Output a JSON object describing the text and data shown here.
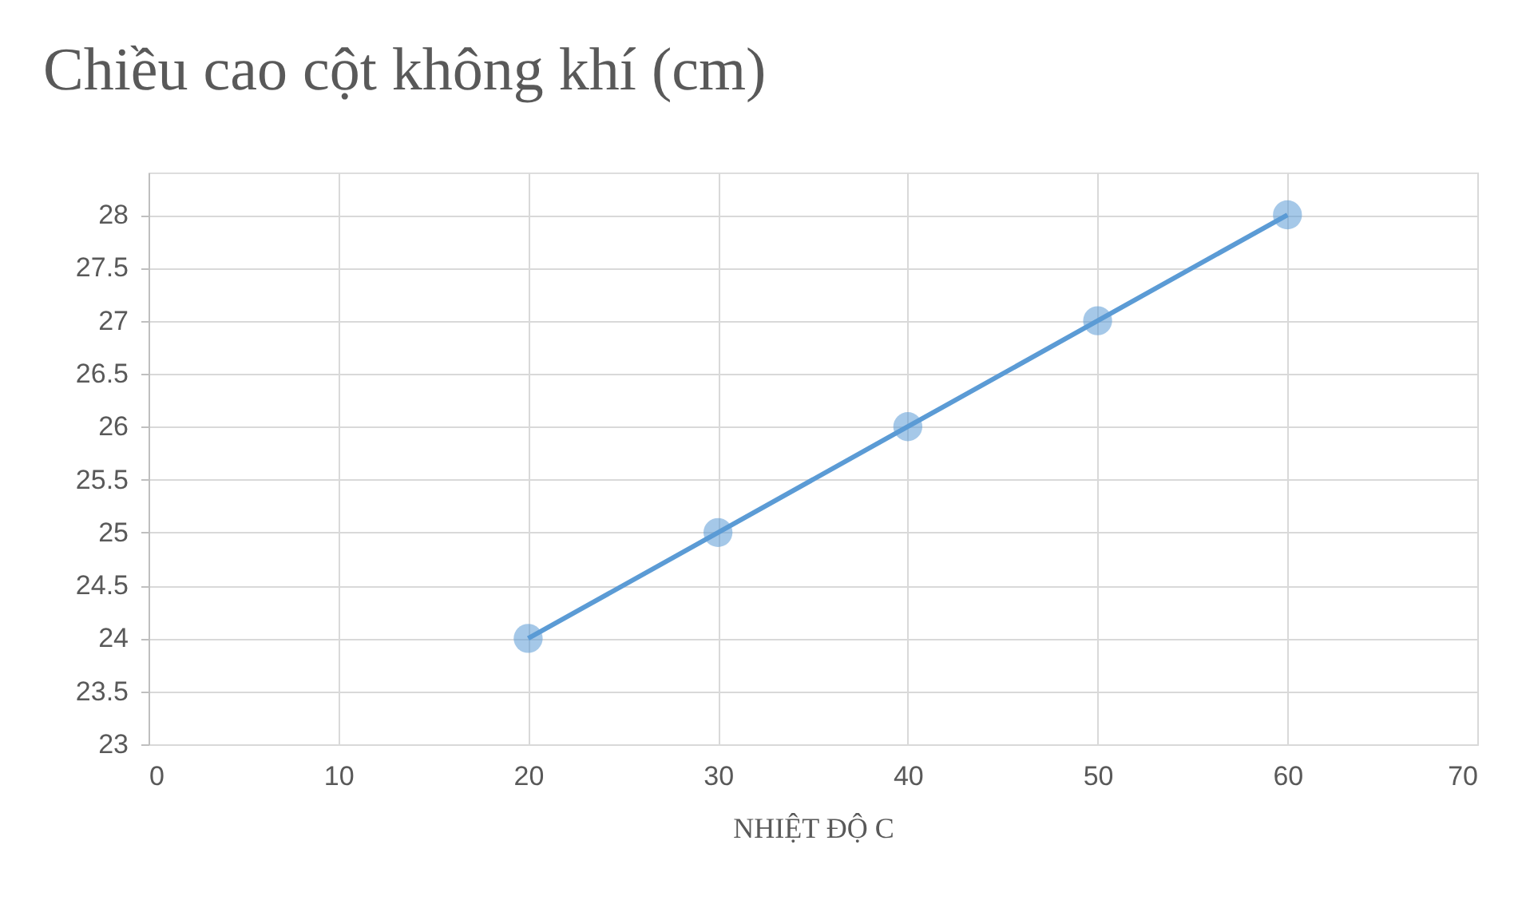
{
  "chart_data": {
    "type": "line",
    "title": "Chiều cao cột không khí (cm)",
    "xlabel": "NHIỆT ĐỘ C",
    "x": [
      20,
      30,
      40,
      50,
      60
    ],
    "series": [
      {
        "color": "#5b9bd5",
        "values": [
          24,
          25,
          26,
          27,
          28
        ]
      }
    ],
    "xlim": [
      0,
      70
    ],
    "xticks": [
      0,
      10,
      20,
      30,
      40,
      50,
      60,
      70
    ],
    "ylim": [
      23,
      28.4
    ],
    "yticks": [
      23,
      23.5,
      24,
      24.5,
      25,
      25.5,
      26,
      26.5,
      27,
      27.5,
      28
    ],
    "grid": true,
    "marker": "circle",
    "line_style": "solid",
    "legend": false
  }
}
